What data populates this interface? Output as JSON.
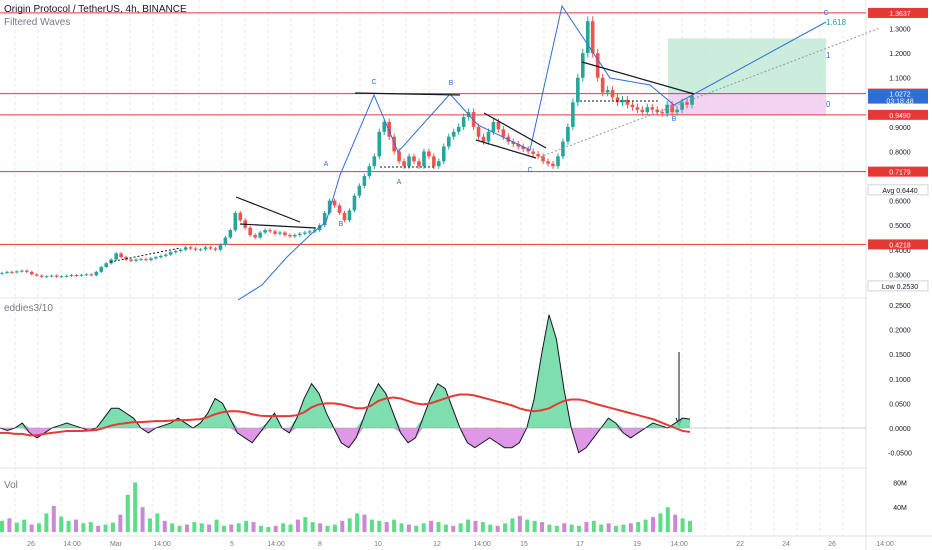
{
  "header": {
    "symbol_line": "Origin Protocol / TetherUS, 4h, BINANCE",
    "indicator_line": "Filtered Waves",
    "oscillator_label": "eddies3/10",
    "volume_label": "Vol"
  },
  "colors": {
    "up": "#26a69a",
    "down": "#ef5350",
    "wave": "#2f6ed9",
    "hline": "#e53935",
    "osc_fill_up": "#5ed69a",
    "osc_fill_down": "#d67ee0",
    "signal": "#e53935",
    "long_tp": "#bfe9d2",
    "long_sl": "#efc9ef"
  },
  "price_axis": {
    "ticks": [
      "1.3637",
      "1.3000",
      "1.2000",
      "1.1000",
      "1.0354",
      "1.0272",
      "0.9490",
      "0.9000",
      "0.8000",
      "0.7179",
      "0.6440",
      "0.6000",
      "0.5000",
      "0.4218",
      "0.4000",
      "0.3000",
      "0.2530"
    ],
    "tags": [
      {
        "label": "1.3637",
        "kind": "red",
        "y_price": 1.3637
      },
      {
        "label": "1.0354",
        "kind": "red",
        "y_price": 1.0354
      },
      {
        "label": "1.0272",
        "sub": "03:18:48",
        "kind": "blue",
        "y_price": 1.0272
      },
      {
        "label": "0.9490",
        "kind": "red",
        "y_price": 0.949
      },
      {
        "label": "0.7179",
        "kind": "red",
        "y_price": 0.7179
      },
      {
        "label": "Avg  0.6440",
        "kind": "plain",
        "y_price": 0.644
      },
      {
        "label": "0.4218",
        "kind": "red",
        "y_price": 0.4218
      },
      {
        "label": "Low  0.2530",
        "kind": "plain",
        "y_price": 0.253
      }
    ],
    "plain_ticks": [
      1.3,
      1.2,
      1.1,
      0.9,
      0.8,
      0.6,
      0.5,
      0.4,
      0.3
    ]
  },
  "osc_axis": {
    "ticks": [
      "0.2500",
      "0.2000",
      "0.1500",
      "0.1000",
      "0.0500",
      "0.0000",
      "-0.0500"
    ],
    "values": [
      0.25,
      0.2,
      0.15,
      0.1,
      0.05,
      0.0,
      -0.05
    ]
  },
  "vol_axis": {
    "ticks": [
      "80M",
      "40M"
    ],
    "values": [
      80,
      40
    ]
  },
  "time_axis": {
    "labels": [
      "26",
      "14:00",
      "Mar",
      "14:00",
      "5",
      "14:00",
      "8",
      "10",
      "12",
      "14:00",
      "15",
      "17",
      "19",
      "14:00",
      "22",
      "24",
      "26",
      "14:00"
    ]
  },
  "horizontal_levels": [
    1.3637,
    1.0354,
    0.949,
    0.7179,
    0.4218
  ],
  "fib": {
    "labels": [
      "1.618",
      "1",
      "0"
    ]
  },
  "wave_labels": [
    "A",
    "B",
    "C",
    "A",
    "B",
    "A",
    "B",
    "C",
    "C",
    "B",
    "C",
    "B"
  ],
  "chart_data": {
    "type": "candlestick",
    "title": "Origin Protocol / TetherUS, 4h, BINANCE",
    "ylim": [
      0.25,
      1.4
    ],
    "close": [
      0.306,
      0.31,
      0.308,
      0.312,
      0.315,
      0.31,
      0.3,
      0.295,
      0.29,
      0.292,
      0.295,
      0.29,
      0.292,
      0.294,
      0.297,
      0.295,
      0.298,
      0.3,
      0.296,
      0.31,
      0.33,
      0.345,
      0.36,
      0.385,
      0.37,
      0.36,
      0.355,
      0.36,
      0.362,
      0.358,
      0.365,
      0.37,
      0.375,
      0.38,
      0.39,
      0.395,
      0.4,
      0.41,
      0.405,
      0.4,
      0.402,
      0.41,
      0.405,
      0.4,
      0.42,
      0.45,
      0.48,
      0.55,
      0.52,
      0.49,
      0.46,
      0.45,
      0.47,
      0.48,
      0.475,
      0.465,
      0.47,
      0.46,
      0.455,
      0.46,
      0.465,
      0.47,
      0.475,
      0.48,
      0.5,
      0.55,
      0.6,
      0.58,
      0.55,
      0.52,
      0.56,
      0.62,
      0.66,
      0.7,
      0.74,
      0.78,
      0.88,
      0.92,
      0.86,
      0.8,
      0.76,
      0.74,
      0.78,
      0.76,
      0.74,
      0.8,
      0.78,
      0.74,
      0.76,
      0.82,
      0.86,
      0.88,
      0.9,
      0.94,
      0.96,
      0.9,
      0.86,
      0.84,
      0.88,
      0.92,
      0.89,
      0.86,
      0.84,
      0.83,
      0.82,
      0.81,
      0.8,
      0.79,
      0.78,
      0.76,
      0.75,
      0.74,
      0.78,
      0.84,
      0.9,
      1.0,
      1.1,
      1.2,
      1.33,
      1.2,
      1.1,
      1.04,
      1.05,
      1.02,
      1.0,
      1.01,
      0.99,
      0.98,
      0.97,
      0.96,
      0.98,
      0.97,
      0.96,
      0.955,
      0.99,
      0.96,
      0.97,
      1.0,
      0.99,
      1.027
    ],
    "osc_values": [
      0.0,
      -0.005,
      0.0,
      0.01,
      -0.01,
      -0.02,
      -0.01,
      0.0,
      0.005,
      0.01,
      0.005,
      0.0,
      -0.005,
      0.0,
      0.02,
      0.04,
      0.04,
      0.03,
      0.02,
      0.0,
      -0.01,
      0.0,
      0.005,
      0.01,
      0.02,
      0.01,
      0.0,
      0.01,
      0.03,
      0.06,
      0.05,
      0.02,
      -0.01,
      -0.02,
      -0.03,
      -0.01,
      0.01,
      0.03,
      0.0,
      -0.01,
      0.02,
      0.06,
      0.09,
      0.07,
      0.03,
      0.0,
      -0.03,
      -0.04,
      -0.02,
      0.02,
      0.06,
      0.09,
      0.07,
      0.03,
      -0.01,
      -0.03,
      -0.02,
      0.02,
      0.06,
      0.09,
      0.08,
      0.04,
      0.0,
      -0.03,
      -0.04,
      -0.03,
      -0.02,
      -0.03,
      -0.04,
      -0.04,
      -0.03,
      0.0,
      0.06,
      0.15,
      0.23,
      0.18,
      0.08,
      0.0,
      -0.05,
      -0.04,
      -0.02,
      0.0,
      0.02,
      0.01,
      -0.01,
      -0.02,
      -0.01,
      0.0,
      0.01,
      0.005,
      0.0,
      0.01,
      0.02,
      0.018
    ],
    "signal_values": [
      -0.01,
      -0.01,
      -0.012,
      -0.012,
      -0.015,
      -0.015,
      -0.012,
      -0.01,
      -0.008,
      -0.006,
      -0.006,
      -0.006,
      -0.005,
      -0.004,
      0.0,
      0.005,
      0.008,
      0.01,
      0.012,
      0.012,
      0.013,
      0.014,
      0.014,
      0.015,
      0.016,
      0.016,
      0.017,
      0.018,
      0.022,
      0.028,
      0.032,
      0.034,
      0.034,
      0.032,
      0.028,
      0.025,
      0.024,
      0.024,
      0.024,
      0.024,
      0.026,
      0.032,
      0.042,
      0.048,
      0.05,
      0.05,
      0.048,
      0.044,
      0.04,
      0.04,
      0.045,
      0.055,
      0.06,
      0.062,
      0.06,
      0.055,
      0.05,
      0.048,
      0.05,
      0.055,
      0.06,
      0.065,
      0.068,
      0.068,
      0.066,
      0.062,
      0.058,
      0.054,
      0.05,
      0.046,
      0.04,
      0.036,
      0.034,
      0.036,
      0.04,
      0.048,
      0.055,
      0.058,
      0.058,
      0.055,
      0.05,
      0.046,
      0.042,
      0.038,
      0.034,
      0.03,
      0.026,
      0.022,
      0.018,
      0.012,
      0.006,
      0.0,
      -0.006,
      -0.008
    ],
    "volume_values": [
      18,
      22,
      15,
      20,
      12,
      14,
      30,
      42,
      25,
      18,
      20,
      14,
      16,
      10,
      12,
      15,
      28,
      60,
      80,
      40,
      22,
      30,
      18,
      14,
      10,
      12,
      16,
      14,
      12,
      20,
      10,
      12,
      14,
      18,
      16,
      10,
      8,
      10,
      14,
      12,
      20,
      24,
      16,
      14,
      10,
      12,
      18,
      22,
      30,
      28,
      20,
      18,
      16,
      20,
      14,
      12,
      10,
      14,
      18,
      16,
      12,
      10,
      14,
      20,
      18,
      16,
      12,
      10,
      14,
      22,
      26,
      20,
      18,
      16,
      12,
      10,
      14,
      12,
      10,
      16,
      18,
      12,
      14,
      10,
      12,
      14,
      16,
      20,
      24,
      30,
      40,
      28,
      22,
      18
    ],
    "levels": [
      1.3637,
      1.0354,
      0.949,
      0.7179,
      0.4218
    ],
    "last_price": 1.0272,
    "avg_price": 0.644,
    "low_price": 0.253
  }
}
